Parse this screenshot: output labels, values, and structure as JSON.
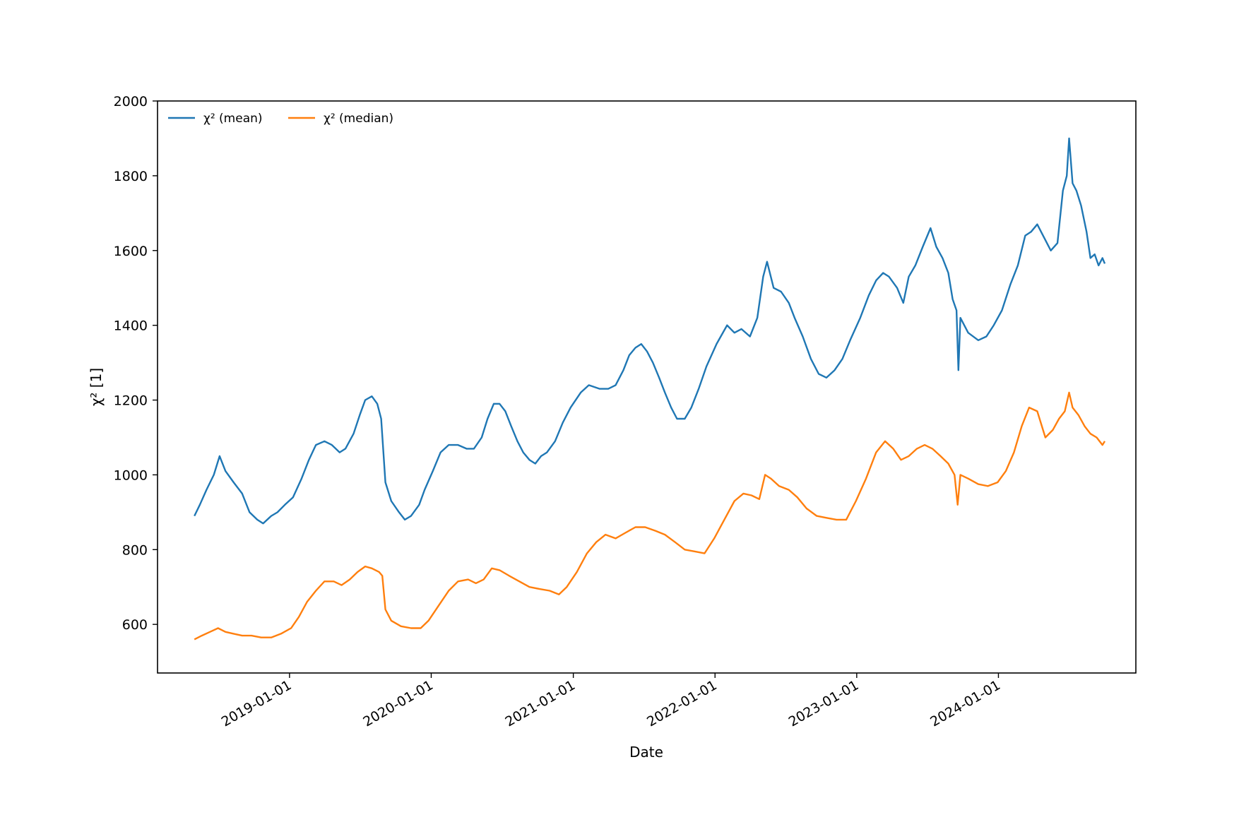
{
  "chart_data": {
    "type": "line",
    "title": "",
    "xlabel": "Date",
    "ylabel": "χ² [1]",
    "x_ticks": [
      "2019-01-01",
      "2020-01-01",
      "2021-01-01",
      "2022-01-01",
      "2023-01-01",
      "2024-01-01"
    ],
    "y_ticks": [
      600,
      800,
      1000,
      1200,
      1400,
      1600,
      1800,
      2000
    ],
    "xlim": [
      "2018-01-26",
      "2024-12-20"
    ],
    "ylim": [
      470,
      2000
    ],
    "grid": false,
    "legend_position": "top-left",
    "series": [
      {
        "name": "χ² (mean)",
        "color": "#1f77b4",
        "points": [
          [
            "2018-05-01",
            890
          ],
          [
            "2018-05-15",
            920
          ],
          [
            "2018-06-01",
            960
          ],
          [
            "2018-06-20",
            1000
          ],
          [
            "2018-07-05",
            1050
          ],
          [
            "2018-07-20",
            1010
          ],
          [
            "2018-08-10",
            980
          ],
          [
            "2018-09-01",
            950
          ],
          [
            "2018-09-20",
            900
          ],
          [
            "2018-10-10",
            880
          ],
          [
            "2018-10-25",
            870
          ],
          [
            "2018-11-15",
            890
          ],
          [
            "2018-12-01",
            900
          ],
          [
            "2018-12-20",
            920
          ],
          [
            "2019-01-10",
            940
          ],
          [
            "2019-02-01",
            990
          ],
          [
            "2019-02-20",
            1040
          ],
          [
            "2019-03-10",
            1080
          ],
          [
            "2019-04-01",
            1090
          ],
          [
            "2019-04-20",
            1080
          ],
          [
            "2019-05-10",
            1060
          ],
          [
            "2019-05-25",
            1070
          ],
          [
            "2019-06-15",
            1110
          ],
          [
            "2019-07-01",
            1160
          ],
          [
            "2019-07-15",
            1200
          ],
          [
            "2019-08-01",
            1210
          ],
          [
            "2019-08-15",
            1190
          ],
          [
            "2019-08-25",
            1150
          ],
          [
            "2019-09-05",
            980
          ],
          [
            "2019-09-20",
            930
          ],
          [
            "2019-10-10",
            900
          ],
          [
            "2019-10-25",
            880
          ],
          [
            "2019-11-10",
            890
          ],
          [
            "2019-12-01",
            920
          ],
          [
            "2019-12-15",
            960
          ],
          [
            "2020-01-05",
            1010
          ],
          [
            "2020-01-25",
            1060
          ],
          [
            "2020-02-15",
            1080
          ],
          [
            "2020-03-10",
            1080
          ],
          [
            "2020-04-01",
            1070
          ],
          [
            "2020-04-20",
            1070
          ],
          [
            "2020-05-10",
            1100
          ],
          [
            "2020-05-25",
            1150
          ],
          [
            "2020-06-10",
            1190
          ],
          [
            "2020-06-25",
            1190
          ],
          [
            "2020-07-10",
            1170
          ],
          [
            "2020-07-25",
            1130
          ],
          [
            "2020-08-10",
            1090
          ],
          [
            "2020-08-25",
            1060
          ],
          [
            "2020-09-10",
            1040
          ],
          [
            "2020-09-25",
            1030
          ],
          [
            "2020-10-10",
            1050
          ],
          [
            "2020-10-25",
            1060
          ],
          [
            "2020-11-15",
            1090
          ],
          [
            "2020-12-05",
            1140
          ],
          [
            "2020-12-25",
            1180
          ],
          [
            "2021-01-20",
            1220
          ],
          [
            "2021-02-10",
            1240
          ],
          [
            "2021-03-10",
            1230
          ],
          [
            "2021-04-01",
            1230
          ],
          [
            "2021-04-20",
            1240
          ],
          [
            "2021-05-10",
            1280
          ],
          [
            "2021-05-25",
            1320
          ],
          [
            "2021-06-10",
            1340
          ],
          [
            "2021-06-25",
            1350
          ],
          [
            "2021-07-10",
            1330
          ],
          [
            "2021-07-25",
            1300
          ],
          [
            "2021-08-10",
            1260
          ],
          [
            "2021-08-25",
            1220
          ],
          [
            "2021-09-10",
            1180
          ],
          [
            "2021-09-25",
            1150
          ],
          [
            "2021-10-15",
            1150
          ],
          [
            "2021-11-01",
            1180
          ],
          [
            "2021-11-20",
            1230
          ],
          [
            "2021-12-10",
            1290
          ],
          [
            "2022-01-05",
            1350
          ],
          [
            "2022-02-01",
            1400
          ],
          [
            "2022-02-20",
            1380
          ],
          [
            "2022-03-10",
            1390
          ],
          [
            "2022-04-01",
            1370
          ],
          [
            "2022-04-20",
            1420
          ],
          [
            "2022-05-05",
            1530
          ],
          [
            "2022-05-15",
            1570
          ],
          [
            "2022-06-01",
            1500
          ],
          [
            "2022-06-20",
            1490
          ],
          [
            "2022-07-10",
            1460
          ],
          [
            "2022-07-25",
            1420
          ],
          [
            "2022-08-15",
            1370
          ],
          [
            "2022-09-05",
            1310
          ],
          [
            "2022-09-25",
            1270
          ],
          [
            "2022-10-15",
            1260
          ],
          [
            "2022-11-05",
            1280
          ],
          [
            "2022-11-25",
            1310
          ],
          [
            "2022-12-15",
            1360
          ],
          [
            "2023-01-10",
            1420
          ],
          [
            "2023-02-01",
            1480
          ],
          [
            "2023-02-20",
            1520
          ],
          [
            "2023-03-10",
            1540
          ],
          [
            "2023-03-25",
            1530
          ],
          [
            "2023-04-15",
            1500
          ],
          [
            "2023-05-01",
            1460
          ],
          [
            "2023-05-15",
            1530
          ],
          [
            "2023-06-01",
            1560
          ],
          [
            "2023-06-20",
            1610
          ],
          [
            "2023-07-10",
            1660
          ],
          [
            "2023-07-25",
            1610
          ],
          [
            "2023-08-10",
            1580
          ],
          [
            "2023-08-25",
            1540
          ],
          [
            "2023-09-05",
            1470
          ],
          [
            "2023-09-15",
            1440
          ],
          [
            "2023-09-20",
            1280
          ],
          [
            "2023-09-25",
            1420
          ],
          [
            "2023-10-15",
            1380
          ],
          [
            "2023-11-10",
            1360
          ],
          [
            "2023-12-01",
            1370
          ],
          [
            "2023-12-20",
            1400
          ],
          [
            "2024-01-10",
            1440
          ],
          [
            "2024-02-01",
            1510
          ],
          [
            "2024-02-20",
            1560
          ],
          [
            "2024-03-10",
            1640
          ],
          [
            "2024-03-25",
            1650
          ],
          [
            "2024-04-10",
            1670
          ],
          [
            "2024-04-25",
            1640
          ],
          [
            "2024-05-15",
            1600
          ],
          [
            "2024-06-01",
            1620
          ],
          [
            "2024-06-15",
            1760
          ],
          [
            "2024-06-25",
            1800
          ],
          [
            "2024-07-01",
            1900
          ],
          [
            "2024-07-10",
            1780
          ],
          [
            "2024-07-20",
            1760
          ],
          [
            "2024-08-01",
            1720
          ],
          [
            "2024-08-15",
            1650
          ],
          [
            "2024-08-25",
            1580
          ],
          [
            "2024-09-05",
            1590
          ],
          [
            "2024-09-15",
            1560
          ],
          [
            "2024-09-25",
            1580
          ],
          [
            "2024-10-01",
            1565
          ]
        ]
      },
      {
        "name": "χ² (median)",
        "color": "#ff7f0e",
        "points": [
          [
            "2018-05-01",
            560
          ],
          [
            "2018-05-20",
            570
          ],
          [
            "2018-06-10",
            580
          ],
          [
            "2018-07-01",
            590
          ],
          [
            "2018-07-20",
            580
          ],
          [
            "2018-08-10",
            575
          ],
          [
            "2018-09-01",
            570
          ],
          [
            "2018-09-25",
            570
          ],
          [
            "2018-10-20",
            565
          ],
          [
            "2018-11-15",
            565
          ],
          [
            "2018-12-10",
            575
          ],
          [
            "2019-01-05",
            590
          ],
          [
            "2019-01-25",
            620
          ],
          [
            "2019-02-15",
            660
          ],
          [
            "2019-03-10",
            690
          ],
          [
            "2019-04-01",
            715
          ],
          [
            "2019-04-25",
            715
          ],
          [
            "2019-05-15",
            705
          ],
          [
            "2019-06-05",
            720
          ],
          [
            "2019-06-25",
            740
          ],
          [
            "2019-07-15",
            755
          ],
          [
            "2019-08-01",
            750
          ],
          [
            "2019-08-20",
            740
          ],
          [
            "2019-08-28",
            730
          ],
          [
            "2019-09-05",
            640
          ],
          [
            "2019-09-20",
            610
          ],
          [
            "2019-10-15",
            595
          ],
          [
            "2019-11-10",
            590
          ],
          [
            "2019-12-05",
            590
          ],
          [
            "2019-12-25",
            610
          ],
          [
            "2020-01-20",
            650
          ],
          [
            "2020-02-15",
            690
          ],
          [
            "2020-03-10",
            715
          ],
          [
            "2020-04-05",
            720
          ],
          [
            "2020-04-25",
            710
          ],
          [
            "2020-05-15",
            720
          ],
          [
            "2020-06-05",
            750
          ],
          [
            "2020-06-25",
            745
          ],
          [
            "2020-07-20",
            730
          ],
          [
            "2020-08-15",
            715
          ],
          [
            "2020-09-10",
            700
          ],
          [
            "2020-10-05",
            695
          ],
          [
            "2020-11-01",
            690
          ],
          [
            "2020-11-25",
            680
          ],
          [
            "2020-12-15",
            700
          ],
          [
            "2021-01-10",
            740
          ],
          [
            "2021-02-05",
            790
          ],
          [
            "2021-03-01",
            820
          ],
          [
            "2021-03-25",
            840
          ],
          [
            "2021-04-20",
            830
          ],
          [
            "2021-05-15",
            845
          ],
          [
            "2021-06-10",
            860
          ],
          [
            "2021-07-05",
            860
          ],
          [
            "2021-08-01",
            850
          ],
          [
            "2021-08-25",
            840
          ],
          [
            "2021-09-20",
            820
          ],
          [
            "2021-10-15",
            800
          ],
          [
            "2021-11-10",
            795
          ],
          [
            "2021-12-05",
            790
          ],
          [
            "2021-12-30",
            830
          ],
          [
            "2022-01-25",
            880
          ],
          [
            "2022-02-20",
            930
          ],
          [
            "2022-03-15",
            950
          ],
          [
            "2022-04-05",
            945
          ],
          [
            "2022-04-25",
            935
          ],
          [
            "2022-05-10",
            1000
          ],
          [
            "2022-05-25",
            990
          ],
          [
            "2022-06-15",
            970
          ],
          [
            "2022-07-10",
            960
          ],
          [
            "2022-08-01",
            940
          ],
          [
            "2022-08-25",
            910
          ],
          [
            "2022-09-20",
            890
          ],
          [
            "2022-10-15",
            885
          ],
          [
            "2022-11-10",
            880
          ],
          [
            "2022-12-05",
            880
          ],
          [
            "2022-12-30",
            930
          ],
          [
            "2023-01-25",
            990
          ],
          [
            "2023-02-20",
            1060
          ],
          [
            "2023-03-15",
            1090
          ],
          [
            "2023-04-05",
            1070
          ],
          [
            "2023-04-25",
            1040
          ],
          [
            "2023-05-15",
            1050
          ],
          [
            "2023-06-05",
            1070
          ],
          [
            "2023-06-25",
            1080
          ],
          [
            "2023-07-15",
            1070
          ],
          [
            "2023-08-05",
            1050
          ],
          [
            "2023-08-25",
            1030
          ],
          [
            "2023-09-10",
            1000
          ],
          [
            "2023-09-18",
            920
          ],
          [
            "2023-09-25",
            1000
          ],
          [
            "2023-10-15",
            990
          ],
          [
            "2023-11-10",
            975
          ],
          [
            "2023-12-05",
            970
          ],
          [
            "2023-12-30",
            980
          ],
          [
            "2024-01-20",
            1010
          ],
          [
            "2024-02-10",
            1060
          ],
          [
            "2024-03-01",
            1130
          ],
          [
            "2024-03-20",
            1180
          ],
          [
            "2024-04-10",
            1170
          ],
          [
            "2024-05-01",
            1100
          ],
          [
            "2024-05-20",
            1120
          ],
          [
            "2024-06-05",
            1150
          ],
          [
            "2024-06-20",
            1170
          ],
          [
            "2024-07-01",
            1220
          ],
          [
            "2024-07-10",
            1180
          ],
          [
            "2024-07-25",
            1160
          ],
          [
            "2024-08-10",
            1130
          ],
          [
            "2024-08-25",
            1110
          ],
          [
            "2024-09-10",
            1100
          ],
          [
            "2024-09-25",
            1080
          ],
          [
            "2024-10-01",
            1090
          ]
        ]
      }
    ]
  }
}
